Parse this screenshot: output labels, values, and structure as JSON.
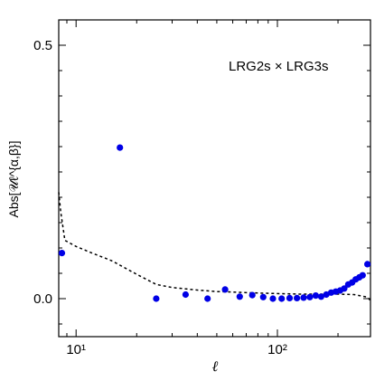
{
  "chart_data": {
    "type": "scatter",
    "title": "",
    "annotation": "LRG2s × LRG3s",
    "xlabel": "ℓ",
    "ylabel": "Abs[𝒰ℓ^{α,β}]",
    "xscale": "log",
    "xlim": [
      8.2,
      290
    ],
    "ylim": [
      -0.075,
      0.55
    ],
    "x_ticks": [
      {
        "value": 10,
        "label": "10¹"
      },
      {
        "value": 100,
        "label": "10²"
      }
    ],
    "y_ticks": [
      {
        "value": 0.0,
        "label": "0.0"
      },
      {
        "value": 0.5,
        "label": "0.5"
      }
    ],
    "grid": false,
    "colors": {
      "points": "#0000e6",
      "threshold": "#000000"
    },
    "series": [
      {
        "style": "points",
        "x": [
          8.5,
          16.5,
          25,
          35,
          45,
          55,
          65,
          75,
          85,
          95,
          105,
          115,
          125,
          135,
          145,
          155,
          165,
          175,
          185,
          195,
          205,
          215,
          225,
          235,
          245,
          255,
          265,
          280
        ],
        "y": [
          0.09,
          0.298,
          0.0,
          0.008,
          0.0,
          0.018,
          0.004,
          0.007,
          0.003,
          0.0,
          0.0,
          0.001,
          0.001,
          0.002,
          0.003,
          0.006,
          0.004,
          0.008,
          0.012,
          0.014,
          0.016,
          0.02,
          0.028,
          0.032,
          0.038,
          0.042,
          0.046,
          0.068
        ]
      },
      {
        "style": "dashed-line",
        "x": [
          8.2,
          8.4,
          8.8,
          10,
          12,
          15,
          20,
          25,
          30,
          40,
          50,
          60,
          80,
          100,
          130,
          160,
          200,
          240,
          280,
          290
        ],
        "y": [
          0.21,
          0.17,
          0.115,
          0.103,
          0.09,
          0.075,
          0.048,
          0.028,
          0.022,
          0.017,
          0.014,
          0.013,
          0.011,
          0.01,
          0.009,
          0.009,
          0.009,
          0.008,
          0.003,
          -0.004
        ]
      }
    ]
  }
}
